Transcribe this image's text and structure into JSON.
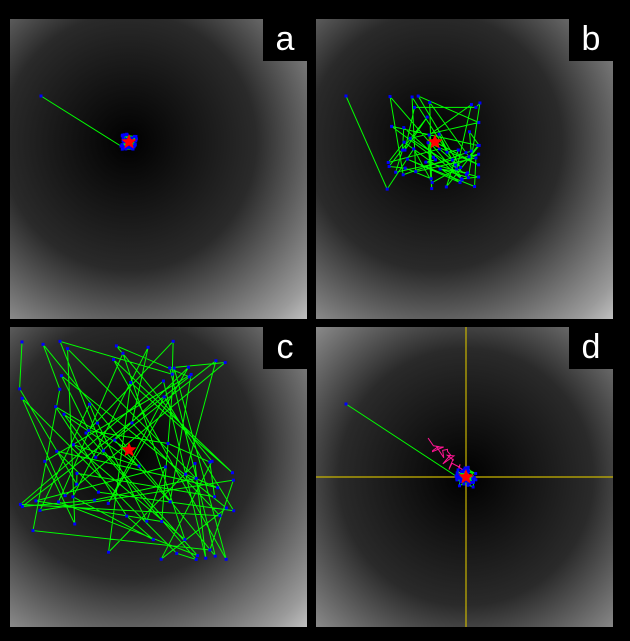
{
  "figure": {
    "panels": [
      {
        "id": "a",
        "label": "a",
        "crosshair": false,
        "start": [
          31,
          77
        ],
        "best": [
          119,
          123
        ],
        "spread": 8,
        "n": 40,
        "pathColor": "#ff1493"
      },
      {
        "id": "b",
        "label": "b",
        "crosshair": false,
        "start": [
          30,
          77
        ],
        "best": [
          119,
          123
        ],
        "spread": 48,
        "n": 60
      },
      {
        "id": "c",
        "label": "c",
        "crosshair": false,
        "start": [
          12,
          15
        ],
        "best": [
          119,
          123
        ],
        "spread": 110,
        "n": 80
      },
      {
        "id": "d",
        "label": "d",
        "crosshair": true,
        "crosshairAt": [
          150,
          150
        ],
        "start": [
          30,
          77
        ],
        "best": [
          150,
          150
        ],
        "spread": 10,
        "n": 40,
        "trail": true
      }
    ],
    "colors": {
      "line": "#00ff00",
      "node": "#0000ff",
      "star": "#ff0000",
      "crosshair": "#c8b400",
      "trail": "#ff1493"
    }
  }
}
